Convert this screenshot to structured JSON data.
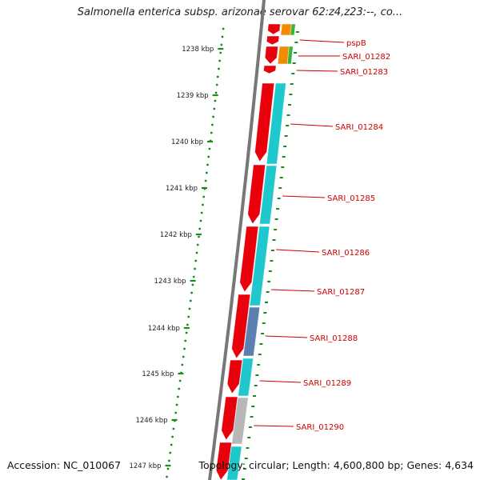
{
  "title": "Salmonella enterica subsp. arizonae serovar 62:z4,z23:--, co...",
  "footer": {
    "accession_label": "Accession:",
    "accession": "NC_010067",
    "topology_label": "Topology:",
    "topology": "circular",
    "length_label": "Length:",
    "length": "4,600,800 bp",
    "genes_label": "Genes:",
    "genes": "4,634"
  },
  "scale_ticks": [
    "1238 kbp",
    "1239 kbp",
    "1240 kbp",
    "1241 kbp",
    "1242 kbp",
    "1243 kbp",
    "1244 kbp",
    "1245 kbp",
    "1246 kbp",
    "1247 kbp"
  ],
  "gene_labels": [
    "pspB",
    "SARI_01282",
    "SARI_01283",
    "SARI_01284",
    "SARI_01285",
    "SARI_01286",
    "SARI_01287",
    "SARI_01288",
    "SARI_01289",
    "SARI_01290"
  ],
  "colors": {
    "forward_strand": "#e8000b",
    "cog_cyan": "#1fc8cc",
    "cog_blue": "#5a7fb0",
    "cog_gray": "#b8b8b8",
    "cog_orange": "#f08c00",
    "cog_green": "#3cb43c",
    "scale_dots": "#1a8a1a",
    "label_red": "#cc0000",
    "backbone": "#777777"
  }
}
